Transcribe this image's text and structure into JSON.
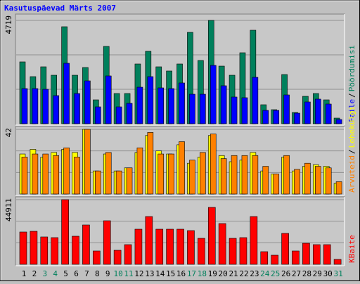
{
  "chart_data": [
    {
      "type": "bar",
      "title": "Kasutuspäevad Märts 2007",
      "separator": "/",
      "ylim": [
        0,
        4719
      ],
      "yticks": [
        4719
      ],
      "series": [
        {
          "name": "Pöördumisi",
          "color": "#00805c",
          "values": [
            2825,
            2151,
            2600,
            2215,
            4430,
            2215,
            2568,
            1091,
            3531,
            1380,
            1380,
            2729,
            3307,
            2600,
            2408,
            2729,
            4173,
            2889,
            4719,
            2632,
            2215,
            3242,
            4270,
            867,
            642,
            2247,
            514,
            1252,
            1380,
            1091,
            257
          ]
        },
        {
          "name": "Faile",
          "color": "#0000ff",
          "values": [
            1605,
            1605,
            1573,
            1284,
            2761,
            1380,
            1958,
            770,
            2183,
            770,
            931,
            1669,
            2151,
            1637,
            1605,
            1862,
            1348,
            1348,
            2664,
            1734,
            1220,
            1188,
            2119,
            610,
            610,
            1316,
            482,
            995,
            1124,
            899,
            193
          ]
        }
      ]
    },
    {
      "type": "bar",
      "ylim": [
        0,
        42
      ],
      "yticks": [
        42
      ],
      "series": [
        {
          "name": "Lehekülgi",
          "color": "#ffff00",
          "values": [
            26,
            29,
            24,
            27,
            29,
            27,
            42,
            15,
            26,
            15,
            17,
            27,
            38,
            28,
            26,
            32,
            20,
            24,
            38,
            25,
            21,
            22,
            27,
            15,
            13,
            24,
            15,
            18,
            19,
            18,
            7
          ]
        },
        {
          "name": "Arvuteid",
          "color": "#ff8000",
          "values": [
            24,
            26,
            26,
            25,
            30,
            24,
            42,
            15,
            27,
            15,
            17,
            30,
            40,
            26,
            26,
            34,
            22,
            27,
            39,
            23,
            25,
            25,
            25,
            18,
            13,
            25,
            16,
            20,
            18,
            17,
            8
          ]
        }
      ]
    },
    {
      "type": "bar",
      "ylim": [
        0,
        44911
      ],
      "yticks": [
        44911
      ],
      "categories": [
        "1",
        "2",
        "3",
        "4",
        "5",
        "6",
        "7",
        "8",
        "9",
        "10",
        "11",
        "12",
        "13",
        "14",
        "15",
        "16",
        "17",
        "18",
        "19",
        "20",
        "21",
        "22",
        "23",
        "24",
        "25",
        "26",
        "27",
        "28",
        "29",
        "30",
        "31"
      ],
      "category_colors": [
        "#000000",
        "#000000",
        "#00805c",
        "#00805c",
        "#000000",
        "#000000",
        "#000000",
        "#000000",
        "#000000",
        "#00805c",
        "#00805c",
        "#000000",
        "#000000",
        "#000000",
        "#000000",
        "#000000",
        "#00805c",
        "#00805c",
        "#000000",
        "#000000",
        "#000000",
        "#000000",
        "#000000",
        "#00805c",
        "#00805c",
        "#000000",
        "#000000",
        "#000000",
        "#000000",
        "#000000",
        "#00805c"
      ],
      "series": [
        {
          "name": "KBaite",
          "color": "#ff0000",
          "values": [
            22456,
            22944,
            19038,
            18550,
            44911,
            19527,
            27337,
            9275,
            30266,
            9763,
            13669,
            24408,
            33195,
            24408,
            24408,
            24408,
            23432,
            18062,
            39541,
            28313,
            18062,
            18550,
            33195,
            8787,
            6346,
            21479,
            9275,
            14645,
            13669,
            13669,
            3417
          ]
        }
      ]
    }
  ]
}
